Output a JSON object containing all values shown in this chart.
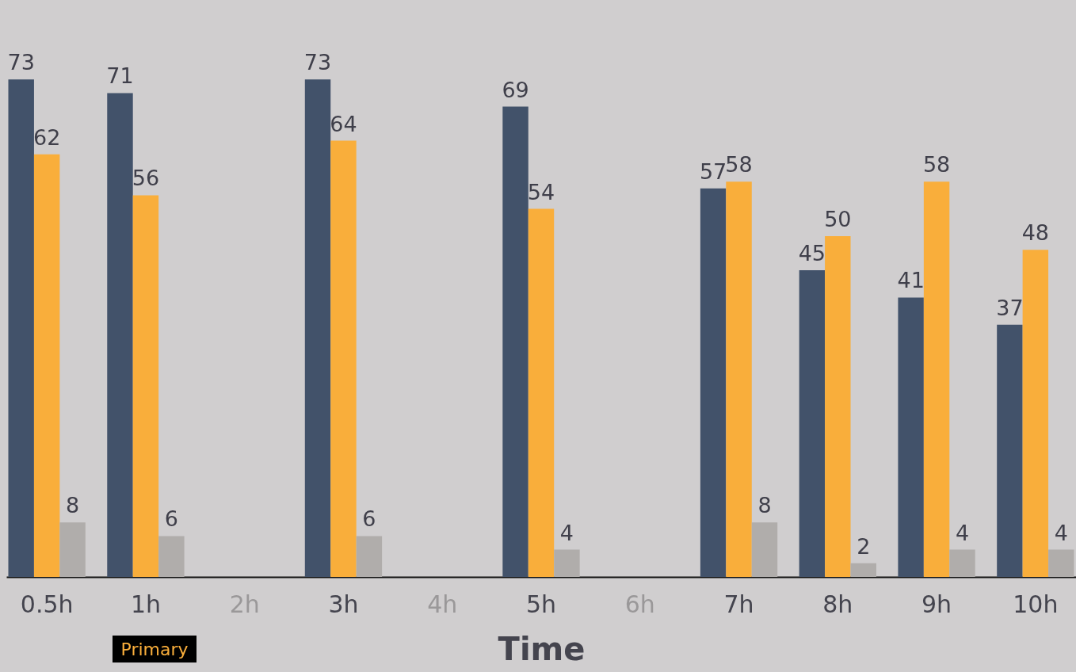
{
  "chart_data": {
    "type": "bar",
    "xlabel": "Time",
    "categories": [
      "0.5h",
      "1h",
      "2h",
      "3h",
      "4h",
      "5h",
      "6h",
      "7h",
      "8h",
      "9h",
      "10h"
    ],
    "series": [
      {
        "color": "#42526a",
        "values": [
          73,
          71,
          null,
          73,
          null,
          69,
          null,
          57,
          45,
          41,
          37
        ]
      },
      {
        "color": "#f9ae3b",
        "values": [
          62,
          56,
          null,
          64,
          null,
          54,
          null,
          58,
          50,
          58,
          48
        ]
      },
      {
        "color": "#b0adab",
        "values": [
          8,
          6,
          null,
          6,
          null,
          4,
          null,
          8,
          2,
          4,
          4
        ]
      }
    ],
    "data_labels": true,
    "legend": false,
    "grid": false,
    "annotations": [
      "Primary"
    ]
  }
}
